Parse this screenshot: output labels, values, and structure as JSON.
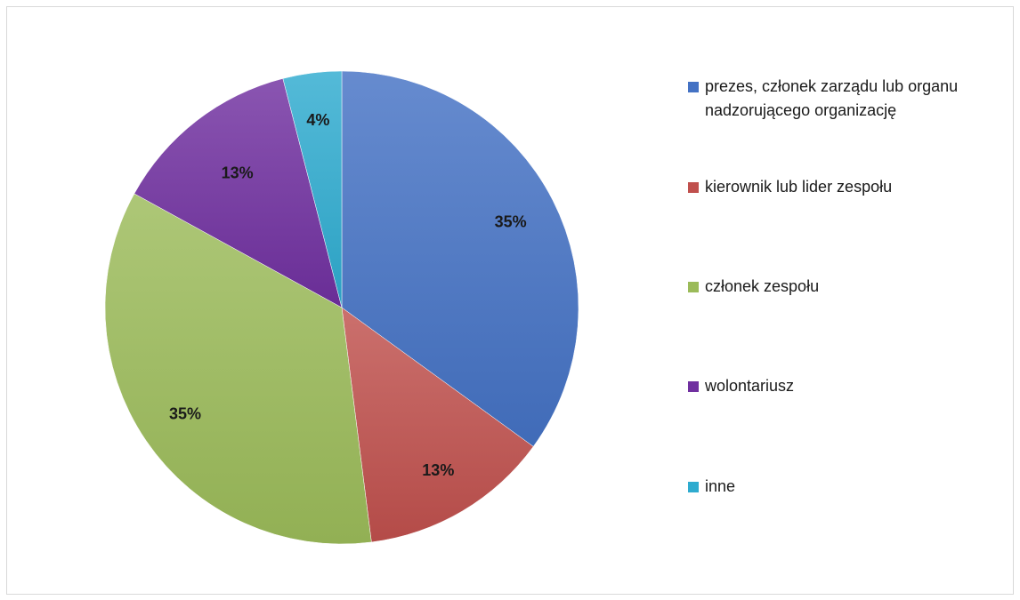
{
  "chart_data": {
    "type": "pie",
    "title": "",
    "slices": [
      {
        "label": "prezes, członek zarządu lub organu nadzorującego organizację",
        "value": 35,
        "display": "35%",
        "color": "#4472c4"
      },
      {
        "label": "kierownik lub lider zespołu",
        "value": 13,
        "display": "13%",
        "color": "#c0504d"
      },
      {
        "label": "członek zespołu",
        "value": 35,
        "display": "35%",
        "color": "#9bbb59"
      },
      {
        "label": "wolontariusz",
        "value": 13,
        "display": "13%",
        "color": "#7030a0"
      },
      {
        "label": "inne",
        "value": 4,
        "display": "4%",
        "color": "#2eabcf"
      }
    ],
    "legend_position": "right",
    "data_labels": "percent"
  }
}
